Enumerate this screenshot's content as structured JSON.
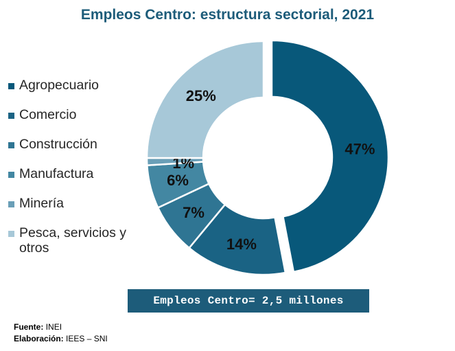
{
  "title": "Empleos Centro: estructura sectorial, 2021",
  "chart_data": {
    "type": "pie",
    "variant": "donut",
    "title": "Empleos Centro: estructura sectorial, 2021",
    "legend_position": "left",
    "slices": [
      {
        "label": "Agropecuario",
        "value": 47,
        "data_label": "47%",
        "color": "#08587a",
        "exploded": true
      },
      {
        "label": "Comercio",
        "value": 14,
        "data_label": "14%",
        "color": "#1a6384"
      },
      {
        "label": "Construcción",
        "value": 7,
        "data_label": "7%",
        "color": "#2f7593"
      },
      {
        "label": "Manufactura",
        "value": 6,
        "data_label": "6%",
        "color": "#4387a2"
      },
      {
        "label": "Minería",
        "value": 1,
        "data_label": "1%",
        "color": "#6a9fb7"
      },
      {
        "label": "Pesca, servicios y otros",
        "value": 25,
        "data_label": "25%",
        "color": "#a7c8d8"
      }
    ]
  },
  "legend": [
    {
      "label": "Agropecuario",
      "color": "#08587a"
    },
    {
      "label": "Comercio",
      "color": "#1a6384"
    },
    {
      "label": "Construcción",
      "color": "#2f7593"
    },
    {
      "label": "Manufactura",
      "color": "#4387a2"
    },
    {
      "label": "Minería",
      "color": "#6a9fb7"
    },
    {
      "label": "Pesca, servicios y otros",
      "color": "#a7c8d8"
    }
  ],
  "total_box": "Empleos Centro= 2,5 millones",
  "footer": {
    "source_label": "Fuente:",
    "source_value": "INEI",
    "credit_label": "Elaboración:",
    "credit_value": "IEES – SNI"
  }
}
